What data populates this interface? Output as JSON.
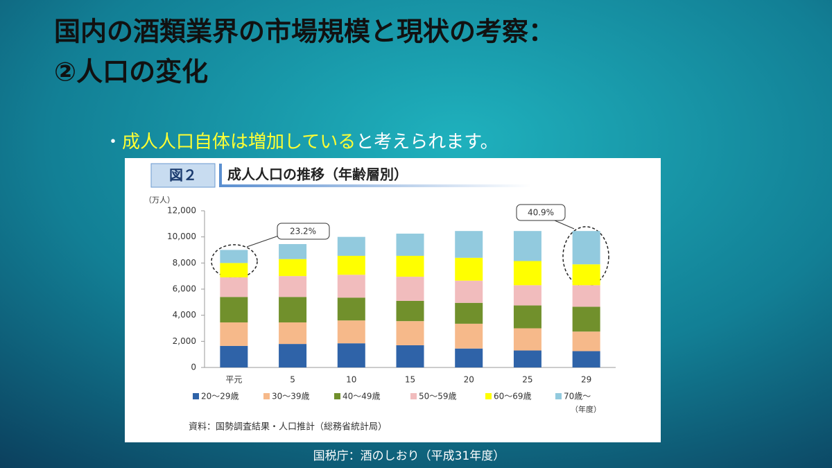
{
  "slide": {
    "title_line1": "国内の酒類業界の市場規模と現状の考察：",
    "title_line2": "②人口の変化",
    "bullet_marker": "・",
    "bullet_highlight": "成人人口自体は増加している",
    "bullet_rest": "と考えられます。",
    "source_note": "国税庁：酒のしおり（平成31年度）"
  },
  "chart_data": {
    "type": "stacked-bar",
    "figure_label": "図２",
    "title": "成人人口の推移（年齢層別）",
    "y_unit": "（万人）",
    "x_unit": "（年度）",
    "categories": [
      "平元",
      "5",
      "10",
      "15",
      "20",
      "25",
      "29"
    ],
    "series": [
      {
        "name": "20～29歳",
        "color": "#2f63a8",
        "values": [
          1650,
          1800,
          1850,
          1700,
          1450,
          1300,
          1250
        ]
      },
      {
        "name": "30～39歳",
        "color": "#f6b98a",
        "values": [
          1800,
          1650,
          1750,
          1850,
          1900,
          1700,
          1500
        ]
      },
      {
        "name": "40～49歳",
        "color": "#71902c",
        "values": [
          1950,
          1950,
          1750,
          1550,
          1600,
          1750,
          1900
        ]
      },
      {
        "name": "50～59歳",
        "color": "#f1bcbd",
        "values": [
          1500,
          1600,
          1750,
          1850,
          1700,
          1550,
          1650
        ]
      },
      {
        "name": "60～69歳",
        "color": "#ffff00",
        "values": [
          1100,
          1300,
          1450,
          1600,
          1750,
          1850,
          1600
        ]
      },
      {
        "name": "70歳～",
        "color": "#92cade",
        "values": [
          1000,
          1150,
          1450,
          1700,
          2050,
          2300,
          2550
        ]
      }
    ],
    "ylim": [
      0,
      12000
    ],
    "yticks": [
      0,
      {
        "value": 2000,
        "label": "2,000"
      },
      {
        "value": 4000,
        "label": "4,000"
      },
      {
        "value": 6000,
        "label": "6,000"
      },
      {
        "value": 8000,
        "label": "8,000"
      },
      {
        "value": 10000,
        "label": "10,000"
      },
      {
        "value": 12000,
        "label": "12,000"
      }
    ],
    "annotations": [
      "23.2%",
      "40.9%"
    ],
    "source": "資料：国勢調査結果・人口推計（総務省統計局）"
  }
}
